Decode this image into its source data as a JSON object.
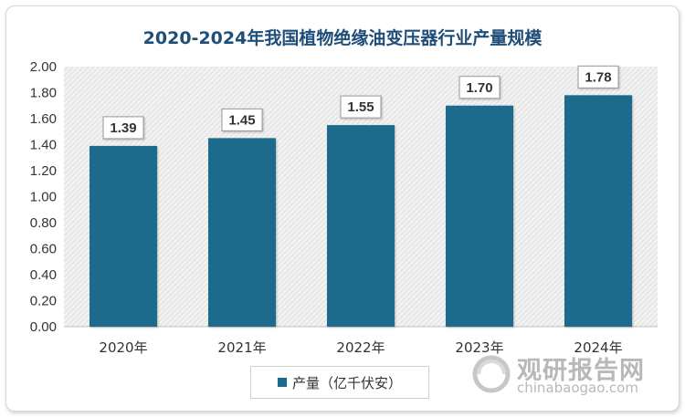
{
  "chart_data": {
    "type": "bar",
    "title": "2020-2024年我国植物绝缘油变压器行业产量规模",
    "categories": [
      "2020年",
      "2021年",
      "2022年",
      "2023年",
      "2024年"
    ],
    "series": [
      {
        "name": "产量（亿千伏安）",
        "values": [
          1.39,
          1.45,
          1.55,
          1.7,
          1.78
        ]
      }
    ],
    "data_labels": [
      "1.39",
      "1.45",
      "1.55",
      "1.70",
      "1.78"
    ],
    "ylim": [
      0,
      2.0
    ],
    "yticks": [
      "0.00",
      "0.20",
      "0.40",
      "0.60",
      "0.80",
      "1.00",
      "1.20",
      "1.40",
      "1.60",
      "1.80",
      "2.00"
    ],
    "xlabel": "",
    "ylabel": "",
    "grid": false,
    "legend_position": "bottom",
    "colors": {
      "bar": "#1d6b8c",
      "title": "#1f4e79"
    }
  },
  "watermark": {
    "brand": "观研报告网",
    "url": "chinabaogao.com"
  }
}
